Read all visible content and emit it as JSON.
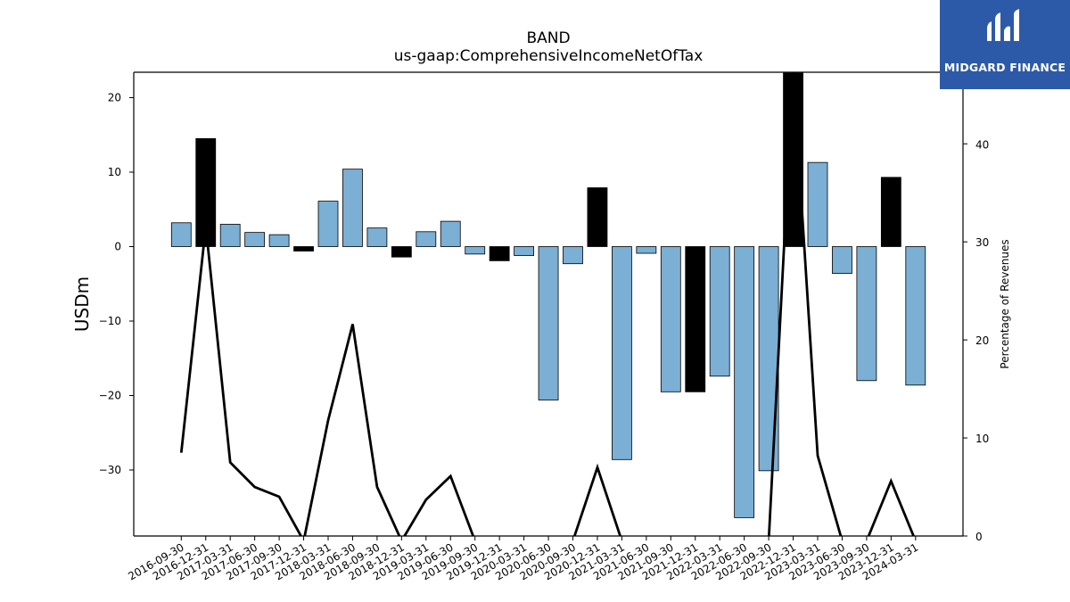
{
  "logo": {
    "text": "MIDGARD FINANCE",
    "background": "#2d5aa8"
  },
  "chart_data": {
    "type": "bar",
    "title": "BAND",
    "subtitle": "us-gaap:ComprehensiveIncomeNetOfTax",
    "ylabel": "USDm",
    "ylabel_right": "Percentage of Revenues",
    "ylim": [
      -39,
      23.3
    ],
    "yticks": [
      20,
      10,
      0,
      -10,
      -20,
      -30
    ],
    "ylim_right": [
      0,
      47.3
    ],
    "yticks_right": [
      40,
      30,
      20,
      10,
      0
    ],
    "grid": false,
    "colors": {
      "bar": "#7bafd4",
      "bar_highlight": "#000000",
      "line": "#000000"
    },
    "categories": [
      "2016-09-30",
      "2016-12-31",
      "2017-03-31",
      "2017-06-30",
      "2017-09-30",
      "2017-12-31",
      "2018-03-31",
      "2018-06-30",
      "2018-09-30",
      "2018-12-31",
      "2019-03-31",
      "2019-06-30",
      "2019-09-30",
      "2019-12-31",
      "2020-03-31",
      "2020-06-30",
      "2020-09-30",
      "2020-12-31",
      "2021-03-31",
      "2021-06-30",
      "2021-09-30",
      "2021-12-31",
      "2022-03-31",
      "2022-06-30",
      "2022-09-30",
      "2022-12-31",
      "2023-03-31",
      "2023-06-30",
      "2023-09-30",
      "2023-12-31",
      "2024-03-31"
    ],
    "values": [
      3.2,
      14.5,
      3.0,
      1.9,
      1.6,
      -0.6,
      6.1,
      10.4,
      2.5,
      -1.4,
      2.0,
      3.4,
      -1.0,
      -1.9,
      -1.2,
      -20.6,
      -2.3,
      7.9,
      -28.6,
      -0.9,
      -19.5,
      -19.5,
      -17.4,
      -36.4,
      -30.1,
      23.3,
      11.3,
      -3.6,
      -18.0,
      9.3,
      -18.6
    ],
    "highlight": [
      false,
      true,
      false,
      false,
      false,
      true,
      false,
      false,
      false,
      true,
      false,
      false,
      false,
      true,
      false,
      false,
      false,
      true,
      false,
      false,
      false,
      true,
      false,
      false,
      false,
      true,
      false,
      false,
      false,
      true,
      false
    ],
    "line_series": {
      "name": "Percentage of Revenues",
      "values": [
        8.5,
        31.6,
        7.5,
        5.0,
        4.0,
        -0.5,
        11.8,
        21.6,
        5.0,
        -0.5,
        3.7,
        6.1,
        -0.5,
        -0.5,
        -0.5,
        -0.5,
        -0.5,
        7.0,
        -0.5,
        -0.5,
        -0.5,
        -0.5,
        -0.5,
        -0.5,
        -0.5,
        47.3,
        8.2,
        -0.5,
        -0.5,
        5.6,
        -0.5
      ]
    }
  }
}
